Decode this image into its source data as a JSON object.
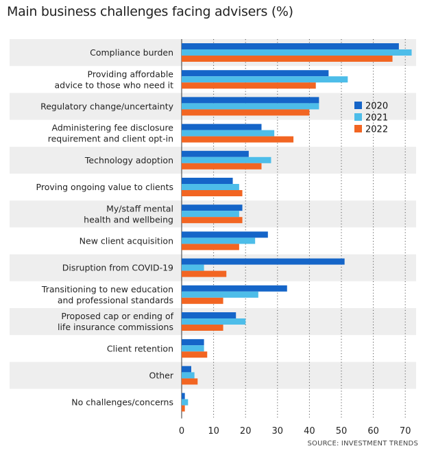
{
  "chart_data": {
    "type": "bar",
    "orientation": "horizontal",
    "title": "Main business challenges facing advisers (%)",
    "source": "SOURCE: INVESTMENT TRENDS",
    "categories": [
      "Compliance burden",
      "Providing affordable\nadvice to those who need it",
      "Regulatory change/uncertainty",
      "Administering fee disclosure\nrequirement and client opt-in",
      "Technology adoption",
      "Proving ongoing value to clients",
      "My/staff mental\nhealth and wellbeing",
      "New client acquisition",
      "Disruption from COVID-19",
      "Transitioning to new education\nand professional standards",
      "Proposed cap or ending of\nlife insurance commissions",
      "Client retention",
      "Other",
      "No challenges/concerns"
    ],
    "series": [
      {
        "name": "2020",
        "color": "#1565c8",
        "values": [
          68,
          46,
          43,
          25,
          21,
          16,
          19,
          27,
          51,
          33,
          17,
          7,
          3,
          1
        ]
      },
      {
        "name": "2021",
        "color": "#4dbde9",
        "values": [
          72,
          52,
          43,
          29,
          28,
          18,
          18,
          23,
          7,
          24,
          20,
          7,
          4,
          2
        ]
      },
      {
        "name": "2022",
        "color": "#f26522",
        "values": [
          66,
          42,
          40,
          35,
          25,
          19,
          19,
          18,
          14,
          13,
          13,
          8,
          5,
          1
        ]
      }
    ],
    "xlim": [
      0,
      73
    ],
    "xticks": [
      0,
      10,
      20,
      30,
      40,
      50,
      60,
      70
    ],
    "legend_position": "right",
    "grid": "vertical-dotted"
  }
}
